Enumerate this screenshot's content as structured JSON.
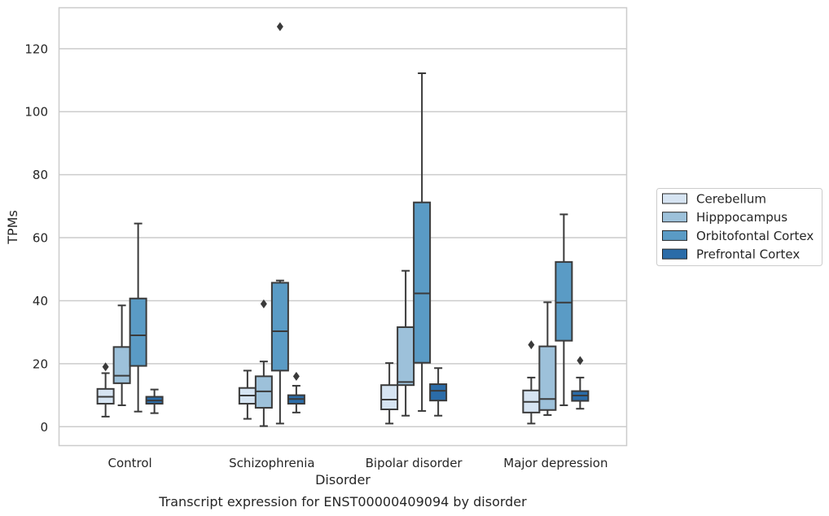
{
  "chart_data": {
    "type": "box",
    "caption": "Transcript expression for ENST00000409094 by disorder",
    "xlabel": "Disorder",
    "ylabel": "TPMs",
    "ylim": [
      -6,
      133
    ],
    "yticks": [
      0,
      20,
      40,
      60,
      80,
      100,
      120
    ],
    "grid": true,
    "legend_position": "right",
    "categories": [
      "Control",
      "Schizophrenia",
      "Bipolar disorder",
      "Major depression"
    ],
    "series": [
      {
        "name": "Cerebellum",
        "color": "#d6e4f2",
        "boxes": [
          {
            "whisker_low": 3.2,
            "q1": 7.3,
            "median": 9.5,
            "q3": 12.0,
            "whisker_high": 17.0,
            "outliers": [
              19.0
            ]
          },
          {
            "whisker_low": 2.5,
            "q1": 7.3,
            "median": 9.9,
            "q3": 12.3,
            "whisker_high": 17.8,
            "outliers": []
          },
          {
            "whisker_low": 1.0,
            "q1": 5.5,
            "median": 8.6,
            "q3": 13.2,
            "whisker_high": 20.2,
            "outliers": []
          },
          {
            "whisker_low": 1.0,
            "q1": 4.5,
            "median": 7.9,
            "q3": 11.5,
            "whisker_high": 15.6,
            "outliers": [
              26.0
            ]
          }
        ]
      },
      {
        "name": "Hipppocampus",
        "color": "#9dc1da",
        "boxes": [
          {
            "whisker_low": 6.8,
            "q1": 13.8,
            "median": 16.2,
            "q3": 25.3,
            "whisker_high": 38.5,
            "outliers": []
          },
          {
            "whisker_low": 0.2,
            "q1": 6.0,
            "median": 11.2,
            "q3": 16.0,
            "whisker_high": 20.7,
            "outliers": [
              39.0
            ]
          },
          {
            "whisker_low": 3.5,
            "q1": 13.2,
            "median": 14.2,
            "q3": 31.6,
            "whisker_high": 49.5,
            "outliers": []
          },
          {
            "whisker_low": 3.7,
            "q1": 5.3,
            "median": 8.8,
            "q3": 25.5,
            "whisker_high": 39.5,
            "outliers": []
          }
        ]
      },
      {
        "name": "Orbitofontal Cortex",
        "color": "#5a9bc5",
        "boxes": [
          {
            "whisker_low": 4.8,
            "q1": 19.3,
            "median": 29.0,
            "q3": 40.7,
            "whisker_high": 64.5,
            "outliers": []
          },
          {
            "whisker_low": 1.0,
            "q1": 17.8,
            "median": 30.3,
            "q3": 45.7,
            "whisker_high": 46.4,
            "outliers": [
              127.0
            ]
          },
          {
            "whisker_low": 5.0,
            "q1": 20.3,
            "median": 42.3,
            "q3": 71.2,
            "whisker_high": 112.2,
            "outliers": []
          },
          {
            "whisker_low": 6.8,
            "q1": 27.3,
            "median": 39.4,
            "q3": 52.3,
            "whisker_high": 67.4,
            "outliers": []
          }
        ]
      },
      {
        "name": "Prefrontal Cortex",
        "color": "#2b6ca8",
        "boxes": [
          {
            "whisker_low": 4.3,
            "q1": 7.3,
            "median": 8.3,
            "q3": 9.5,
            "whisker_high": 11.8,
            "outliers": []
          },
          {
            "whisker_low": 4.5,
            "q1": 7.3,
            "median": 8.8,
            "q3": 10.0,
            "whisker_high": 13.0,
            "outliers": [
              16.0
            ]
          },
          {
            "whisker_low": 3.5,
            "q1": 8.3,
            "median": 11.4,
            "q3": 13.5,
            "whisker_high": 18.6,
            "outliers": []
          },
          {
            "whisker_low": 5.7,
            "q1": 8.2,
            "median": 9.9,
            "q3": 11.3,
            "whisker_high": 15.6,
            "outliers": [
              21.0
            ]
          }
        ]
      }
    ]
  }
}
